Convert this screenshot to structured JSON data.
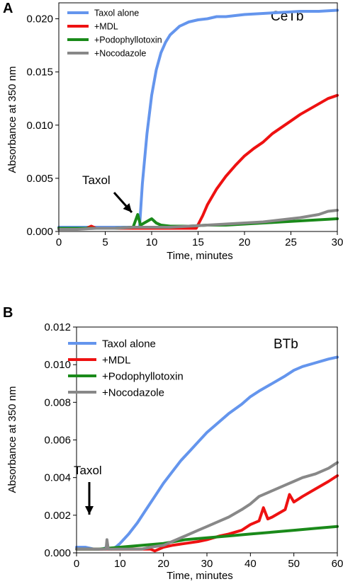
{
  "chart_data": [
    {
      "panel": "A",
      "type": "line",
      "corner_label": "CeTb",
      "xlabel": "Time, minutes",
      "ylabel": "Absorbance at 350 nm",
      "xlim": [
        0,
        30
      ],
      "ylim": [
        0,
        0.0215
      ],
      "xticks": [
        0,
        5,
        10,
        15,
        20,
        25,
        30
      ],
      "xtick_labels": [
        "0",
        "5",
        "10",
        "15",
        "20",
        "25",
        "30"
      ],
      "yticks": [
        0,
        0.005,
        0.01,
        0.015,
        0.02
      ],
      "ytick_labels": [
        "0.000",
        "0.005",
        "0.010",
        "0.015",
        "0.020"
      ],
      "grid": false,
      "legend_position": "top-left",
      "annotation": {
        "text": "Taxol",
        "x": 8.5,
        "y": 0.0015
      },
      "series": [
        {
          "name": "Taxol alone",
          "color": "#6495ED",
          "x": [
            0,
            2,
            4,
            6,
            8,
            8.6,
            8.7,
            9,
            9.5,
            10,
            10.5,
            11,
            11.5,
            12,
            12.5,
            13,
            14,
            15,
            16,
            17,
            18,
            20,
            22,
            24,
            26,
            28,
            30
          ],
          "y": [
            0.0004,
            0.0004,
            0.0004,
            0.0004,
            0.0004,
            0.0004,
            0.0005,
            0.0045,
            0.0092,
            0.0128,
            0.0152,
            0.0168,
            0.0178,
            0.0185,
            0.0189,
            0.0193,
            0.0197,
            0.0199,
            0.02,
            0.0202,
            0.0202,
            0.0204,
            0.0205,
            0.0206,
            0.0207,
            0.0207,
            0.0208
          ]
        },
        {
          "name": "+MDL",
          "color": "#EE1111",
          "x": [
            0,
            3,
            3.5,
            4,
            6,
            8,
            10,
            12,
            14,
            14.8,
            15.5,
            16,
            17,
            18,
            19,
            20,
            21,
            22,
            23,
            24,
            25,
            26,
            27,
            28,
            29,
            30
          ],
          "y": [
            0.0003,
            0.0003,
            0.0005,
            0.0003,
            0.0003,
            0.0003,
            0.0003,
            0.0003,
            0.0003,
            0.0003,
            0.0015,
            0.0025,
            0.004,
            0.0052,
            0.0062,
            0.0071,
            0.0078,
            0.0084,
            0.0092,
            0.0098,
            0.0104,
            0.011,
            0.0115,
            0.012,
            0.0125,
            0.0128
          ]
        },
        {
          "name": "+Podophyllotoxin",
          "color": "#1A8A1A",
          "x": [
            0,
            2,
            4,
            6,
            8,
            8.5,
            8.8,
            9.2,
            10,
            10.5,
            11,
            12,
            14,
            16,
            18,
            20,
            22,
            24,
            26,
            28,
            30
          ],
          "y": [
            0.0003,
            0.0003,
            0.0003,
            0.0003,
            0.0004,
            0.0016,
            0.0006,
            0.0008,
            0.0012,
            0.0008,
            0.0006,
            0.0005,
            0.0005,
            0.0006,
            0.0006,
            0.0007,
            0.0008,
            0.0009,
            0.001,
            0.0011,
            0.0012
          ]
        },
        {
          "name": "+Nocodazole",
          "color": "#888888",
          "x": [
            0,
            2,
            4,
            6,
            8,
            10,
            12,
            14,
            16,
            18,
            20,
            22,
            24,
            26,
            28,
            29,
            30
          ],
          "y": [
            0.0002,
            0.0002,
            0.0003,
            0.0003,
            0.0004,
            0.0004,
            0.0004,
            0.0005,
            0.0006,
            0.0007,
            0.0008,
            0.0009,
            0.0011,
            0.0013,
            0.0016,
            0.0019,
            0.002
          ]
        }
      ]
    },
    {
      "panel": "B",
      "type": "line",
      "corner_label": "BTb",
      "xlabel": "Time, minutes",
      "ylabel": "Absorbance at 350 nm",
      "xlim": [
        0,
        60
      ],
      "ylim": [
        0,
        0.012
      ],
      "xticks": [
        0,
        10,
        20,
        30,
        40,
        50,
        60
      ],
      "xtick_labels": [
        "0",
        "10",
        "20",
        "30",
        "40",
        "50",
        "60"
      ],
      "yticks": [
        0,
        0.002,
        0.004,
        0.006,
        0.008,
        0.01,
        0.012
      ],
      "ytick_labels": [
        "0.000",
        "0.002",
        "0.004",
        "0.006",
        "0.008",
        "0.010",
        "0.012"
      ],
      "grid": false,
      "legend_position": "top-left",
      "annotation": {
        "text": "Taxol",
        "x": 7,
        "y": 0.0012
      },
      "series": [
        {
          "name": "Taxol alone",
          "color": "#6495ED",
          "x": [
            0,
            2,
            4,
            6,
            7,
            8,
            9,
            10,
            12,
            14,
            16,
            18,
            20,
            22,
            24,
            26,
            28,
            30,
            32,
            35,
            38,
            40,
            42,
            45,
            48,
            50,
            52,
            55,
            58,
            60
          ],
          "y": [
            0.0003,
            0.0003,
            0.0002,
            0.0002,
            0.0003,
            0.0002,
            0.0003,
            0.0005,
            0.001,
            0.0016,
            0.0023,
            0.003,
            0.0037,
            0.0043,
            0.0049,
            0.0054,
            0.0059,
            0.0064,
            0.0068,
            0.0074,
            0.0079,
            0.0083,
            0.0086,
            0.009,
            0.0094,
            0.0097,
            0.0099,
            0.0101,
            0.0103,
            0.0104
          ]
        },
        {
          "name": "+MDL",
          "color": "#EE1111",
          "x": [
            0,
            5,
            10,
            15,
            17,
            18,
            19,
            20,
            22,
            25,
            28,
            30,
            33,
            35,
            38,
            40,
            42,
            43,
            44,
            45,
            48,
            49,
            50,
            52,
            55,
            58,
            60
          ],
          "y": [
            0.0002,
            0.0002,
            0.0002,
            0.0002,
            0.0002,
            0.0001,
            0.0002,
            0.0003,
            0.0004,
            0.0005,
            0.0006,
            0.0007,
            0.0009,
            0.001,
            0.0012,
            0.0015,
            0.0017,
            0.0024,
            0.0018,
            0.0019,
            0.0023,
            0.0031,
            0.0027,
            0.003,
            0.0034,
            0.0038,
            0.0041
          ]
        },
        {
          "name": "+Podophyllotoxin",
          "color": "#1A8A1A",
          "x": [
            0,
            5,
            10,
            15,
            20,
            25,
            30,
            35,
            40,
            45,
            50,
            55,
            60
          ],
          "y": [
            0.0002,
            0.0002,
            0.0003,
            0.0004,
            0.0005,
            0.0007,
            0.0008,
            0.0009,
            0.001,
            0.0011,
            0.0012,
            0.0013,
            0.0014
          ]
        },
        {
          "name": "+Nocodazole",
          "color": "#888888",
          "x": [
            0,
            2,
            4,
            6,
            6.8,
            7,
            7.3,
            8,
            10,
            15,
            17,
            20,
            22,
            25,
            28,
            30,
            33,
            35,
            38,
            40,
            42,
            45,
            48,
            50,
            52,
            55,
            58,
            60
          ],
          "y": [
            0.0002,
            0.0002,
            0.0002,
            0.0002,
            0.0002,
            0.0007,
            0.0002,
            0.0002,
            0.0002,
            0.0002,
            0.0003,
            0.0004,
            0.0006,
            0.0009,
            0.0012,
            0.0014,
            0.0017,
            0.0019,
            0.0023,
            0.0026,
            0.003,
            0.0033,
            0.0036,
            0.0038,
            0.004,
            0.0042,
            0.0045,
            0.0048
          ]
        }
      ]
    }
  ]
}
